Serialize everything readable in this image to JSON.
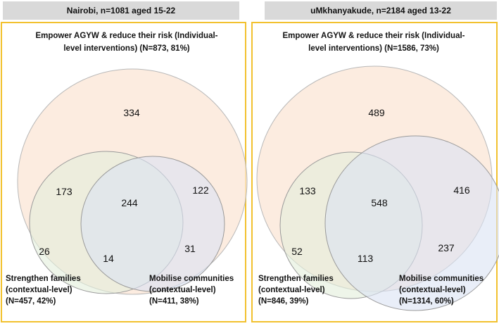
{
  "left": {
    "header": "Nairobi, n=1081 aged 15-22",
    "top_label": [
      "Empower AGYW & reduce their risk (Individual-",
      "level interventions) (N=873, 81%)"
    ],
    "families_label": [
      "Strengthen families",
      "(contextual-level)",
      "(N=457, 42%)"
    ],
    "communities_label": [
      "Mobilise communities",
      "(contextual-level)",
      "(N=411, 38%)"
    ],
    "counts": {
      "individual_only": "334",
      "individual_families": "173",
      "all_three": "244",
      "individual_communities": "122",
      "families_only": "26",
      "families_communities": "14",
      "communities_only": "31"
    }
  },
  "right": {
    "header": "uMkhanyakude, n=2184 aged 13-22",
    "top_label": [
      "Empower AGYW & reduce their risk (Individual-",
      "level interventions) (N=1586, 73%)"
    ],
    "families_label": [
      "Strengthen families",
      "(contextual-level)",
      "(N=846, 39%)"
    ],
    "communities_label": [
      "Mobilise communities",
      "(contextual-level)",
      "(N=1314, 60%)"
    ],
    "counts": {
      "individual_only": "489",
      "individual_families": "133",
      "all_three": "548",
      "individual_communities": "416",
      "families_only": "52",
      "families_communities": "113",
      "communities_only": "237"
    }
  },
  "colors": {
    "individual": "#fbe5d6",
    "families": "#e2efda",
    "communities": "#dae3f3",
    "panel_border": "#f2c12e",
    "header_bg": "#d9d9d9"
  }
}
